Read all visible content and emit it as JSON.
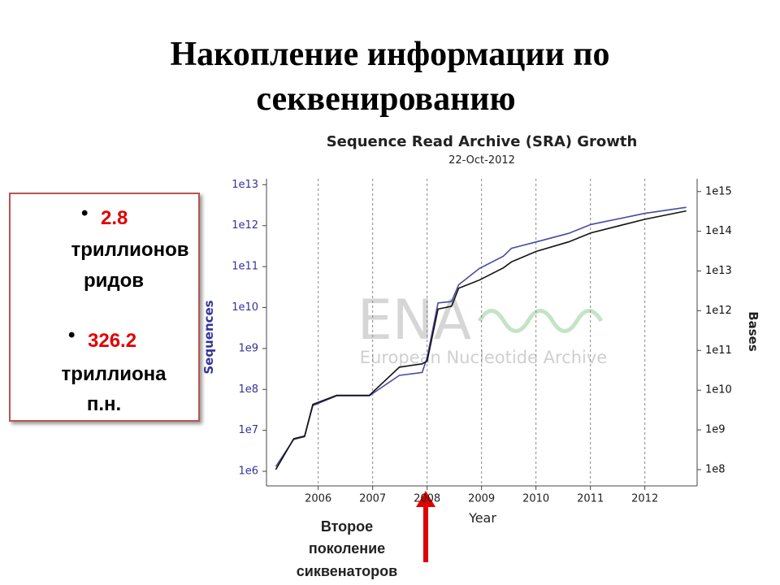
{
  "slide": {
    "title_lines": [
      "Накопление информации по",
      "секвенированию"
    ],
    "bullets": [
      {
        "value": 2.8,
        "text_lines": [
          "триллионов",
          "ридов"
        ]
      },
      {
        "value": 326.2,
        "text_lines": [
          "триллиона",
          "п.н."
        ]
      }
    ],
    "annotation_lines": [
      "Второе",
      "поколение",
      "сиквенаторов"
    ]
  },
  "chart_data": {
    "type": "line",
    "title": "Sequence Read Archive (SRA) Growth",
    "subtitle": "22-Oct-2012",
    "watermark": [
      "ENA",
      "European Nucleotide Archive"
    ],
    "xlabel": "Year",
    "ylabel": "Sequences",
    "y2label": "Bases",
    "log_scale": true,
    "xgrid": true,
    "x": [
      2005.22,
      2005.55,
      2005.75,
      2005.9,
      2006.34,
      2006.94,
      2007.49,
      2007.91,
      2008.0,
      2008.2,
      2008.45,
      2008.58,
      2008.96,
      2009.4,
      2009.55,
      2010.0,
      2010.6,
      2011.01,
      2012.0,
      2012.76
    ],
    "series": [
      {
        "color": "#4a4aa0",
        "values": [
          1300000.0,
          6000000.0,
          7000000.0,
          40000000.0,
          70000000.0,
          70000000.0,
          220000000.0,
          260000000.0,
          600000000.0,
          13000000000.0,
          14000000000.0,
          36000000000.0,
          90000000000.0,
          180000000000.0,
          280000000000.0,
          400000000000.0,
          650000000000.0,
          1070000000000.0,
          2000000000000.0,
          2800000000000.0
        ]
      },
      {
        "color": "#111111",
        "axis": "y2",
        "values": [
          100000000.0,
          600000000.0,
          700000000.0,
          4400000000.0,
          7400000000.0,
          7400000000.0,
          38000000000.0,
          46000000000.0,
          54000000000.0,
          1100000000000.0,
          1300000000000.0,
          3700000000000.0,
          5900000000000.0,
          12000000000000.0,
          17000000000000.0,
          31000000000000.0,
          54000000000000.0,
          91000000000000.0,
          200000000000000.0,
          326000000000000.0
        ]
      }
    ],
    "xlim": [
      2005.05,
      2012.96
    ],
    "xticks": [
      2006,
      2007,
      2008,
      2009,
      2010,
      2011,
      2012
    ],
    "ylim": [
      440000.0,
      14000000000000.0
    ],
    "yticks": [
      {
        "value": 1000000.0,
        "label": "1e6"
      },
      {
        "value": 10000000.0,
        "label": "1e7"
      },
      {
        "value": 100000000.0,
        "label": "1e8"
      },
      {
        "value": 1000000000.0,
        "label": "1e9"
      },
      {
        "value": 10000000000.0,
        "label": "1e10"
      },
      {
        "value": 100000000000.0,
        "label": "1e11"
      },
      {
        "value": 1000000000000.0,
        "label": "1e12"
      },
      {
        "value": 10000000000000.0,
        "label": "1e13"
      }
    ],
    "y2lim": [
      39000000.0,
      2100000000000000.0
    ],
    "y2ticks": [
      {
        "value": 100000000.0,
        "label": "1e8"
      },
      {
        "value": 1000000000.0,
        "label": "1e9"
      },
      {
        "value": 10000000000.0,
        "label": "1e10"
      },
      {
        "value": 100000000000.0,
        "label": "1e11"
      },
      {
        "value": 1000000000000.0,
        "label": "1e12"
      },
      {
        "value": 10000000000000.0,
        "label": "1e13"
      },
      {
        "value": 100000000000000.0,
        "label": "1e14"
      },
      {
        "value": 1000000000000000.0,
        "label": "1e15"
      }
    ]
  }
}
